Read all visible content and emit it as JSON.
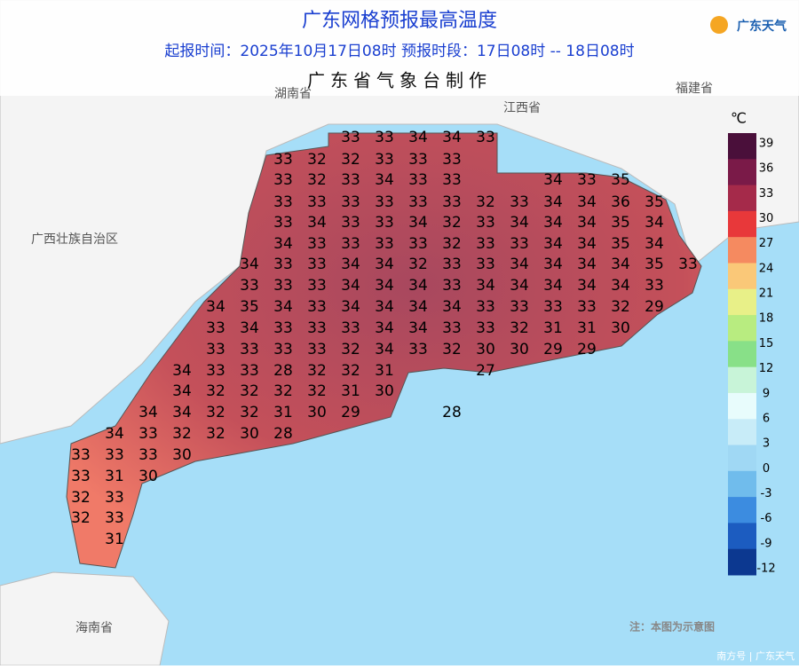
{
  "header": {
    "title": "广东网格预报最高温度",
    "subtitle": "起报时间：2025年10月17日08时   预报时段：17日08时 -- 18日08时",
    "producer": "广东省气象台制作",
    "logo": "广东天气"
  },
  "regions": [
    "湖南省",
    "江西省",
    "福建省",
    "广西壮族自治区",
    "海南省"
  ],
  "grid": {
    "rows": [
      [
        33,
        33,
        34,
        34,
        33
      ],
      [
        33,
        32,
        32,
        33,
        33,
        33
      ],
      [
        33,
        32,
        33,
        34,
        33,
        33,
        34,
        33,
        35
      ],
      [
        33,
        33,
        33,
        33,
        33,
        33,
        32,
        33,
        34,
        34,
        36,
        35
      ],
      [
        33,
        34,
        33,
        33,
        34,
        32,
        33,
        34,
        34,
        34,
        35,
        34
      ],
      [
        34,
        33,
        33,
        33,
        33,
        32,
        33,
        33,
        34,
        34,
        35,
        34
      ],
      [
        34,
        33,
        33,
        34,
        34,
        32,
        33,
        33,
        34,
        34,
        34,
        34,
        35,
        33
      ],
      [
        33,
        33,
        33,
        34,
        34,
        34,
        33,
        34,
        34,
        34,
        34,
        34,
        33
      ],
      [
        34,
        35,
        34,
        33,
        34,
        34,
        34,
        34,
        33,
        33,
        33,
        33,
        32,
        29
      ],
      [
        33,
        34,
        33,
        33,
        33,
        34,
        34,
        33,
        33,
        32,
        31,
        31,
        30
      ],
      [
        33,
        33,
        33,
        33,
        32,
        34,
        33,
        32,
        30,
        30,
        29,
        29
      ],
      [
        34,
        33,
        33,
        28,
        32,
        32,
        31,
        27
      ],
      [
        34,
        32,
        32,
        32,
        32,
        31,
        30
      ],
      [
        34,
        34,
        32,
        32,
        31,
        30,
        29,
        28
      ],
      [
        34,
        33,
        32,
        32,
        30,
        28
      ],
      [
        33,
        33,
        33,
        30
      ],
      [
        33,
        31,
        30
      ],
      [
        32,
        33
      ],
      [
        32,
        33
      ],
      [
        31
      ]
    ]
  },
  "legend": {
    "unit": "℃",
    "ticks": [
      39,
      36,
      33,
      30,
      27,
      24,
      21,
      18,
      15,
      12,
      9,
      6,
      3,
      0,
      -3,
      -6,
      -9,
      -12
    ],
    "colors": [
      "#4a0f3a",
      "#7a1a48",
      "#a52a4a",
      "#e8383a",
      "#f58a60",
      "#fac878",
      "#e8f088",
      "#b8ec80",
      "#88e088",
      "#c8f4d8",
      "#e8fcfc",
      "#c8ecf8",
      "#a0d8f4",
      "#70bcec",
      "#3c8ce0",
      "#1c5cc0",
      "#0c3890"
    ]
  },
  "note": "注：本图为示意图",
  "watermark": "南方号 | 广东天气"
}
